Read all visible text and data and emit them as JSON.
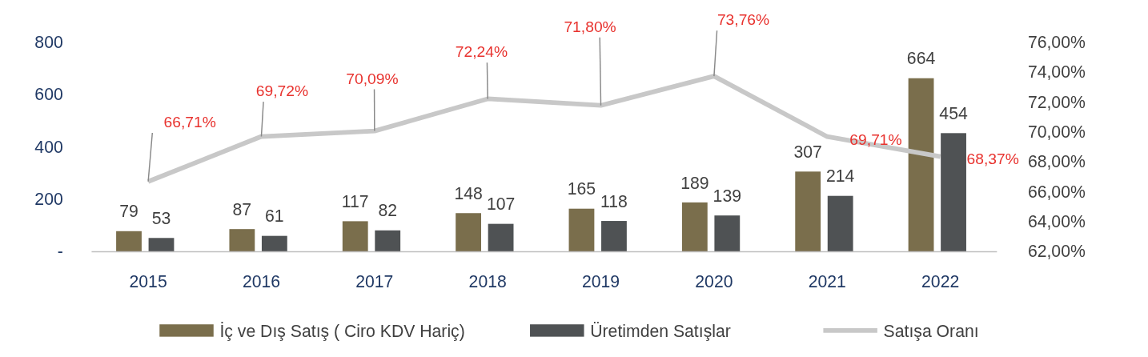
{
  "chart_data": {
    "type": "bar",
    "categories": [
      "2015",
      "2016",
      "2017",
      "2018",
      "2019",
      "2020",
      "2021",
      "2022"
    ],
    "series": [
      {
        "name": "İç ve Dış Satış ( Ciro KDV Hariç)",
        "color": "#7a6e4c",
        "values": [
          79,
          87,
          117,
          148,
          165,
          189,
          307,
          664
        ],
        "value_labels": [
          "79",
          "87",
          "117",
          "148",
          "165",
          "189",
          "307",
          "664"
        ]
      },
      {
        "name": "Üretimden Satışlar",
        "color": "#4f5254",
        "values": [
          53,
          61,
          82,
          107,
          118,
          139,
          214,
          454
        ],
        "value_labels": [
          "53",
          "61",
          "82",
          "107",
          "118",
          "139",
          "214",
          "454"
        ]
      },
      {
        "name": "Satışa Oranı",
        "type": "line",
        "axis": "y2",
        "color": "#c8c8c8",
        "values": [
          66.71,
          69.72,
          70.09,
          72.24,
          71.8,
          73.76,
          69.71,
          68.37
        ],
        "value_labels": [
          "66,71%",
          "69,72%",
          "70,09%",
          "72,24%",
          "71,80%",
          "73,76%",
          "69,71%",
          "68,37%"
        ]
      }
    ],
    "ylim": [
      0,
      800
    ],
    "yticks": [
      {
        "value": 0,
        "label": "-"
      },
      200,
      400,
      600,
      800
    ],
    "y2lim": [
      62,
      76
    ],
    "y2ticks": [
      {
        "value": 62,
        "label": "62,00%"
      },
      {
        "value": 64,
        "label": "64,00%"
      },
      {
        "value": 66,
        "label": "66,00%"
      },
      {
        "value": 68,
        "label": "68,00%"
      },
      {
        "value": 70,
        "label": "70,00%"
      },
      {
        "value": 72,
        "label": "72,00%"
      },
      {
        "value": 74,
        "label": "74,00%"
      },
      {
        "value": 76,
        "label": "76,00%"
      }
    ],
    "grid": false,
    "legend": "bottom"
  }
}
